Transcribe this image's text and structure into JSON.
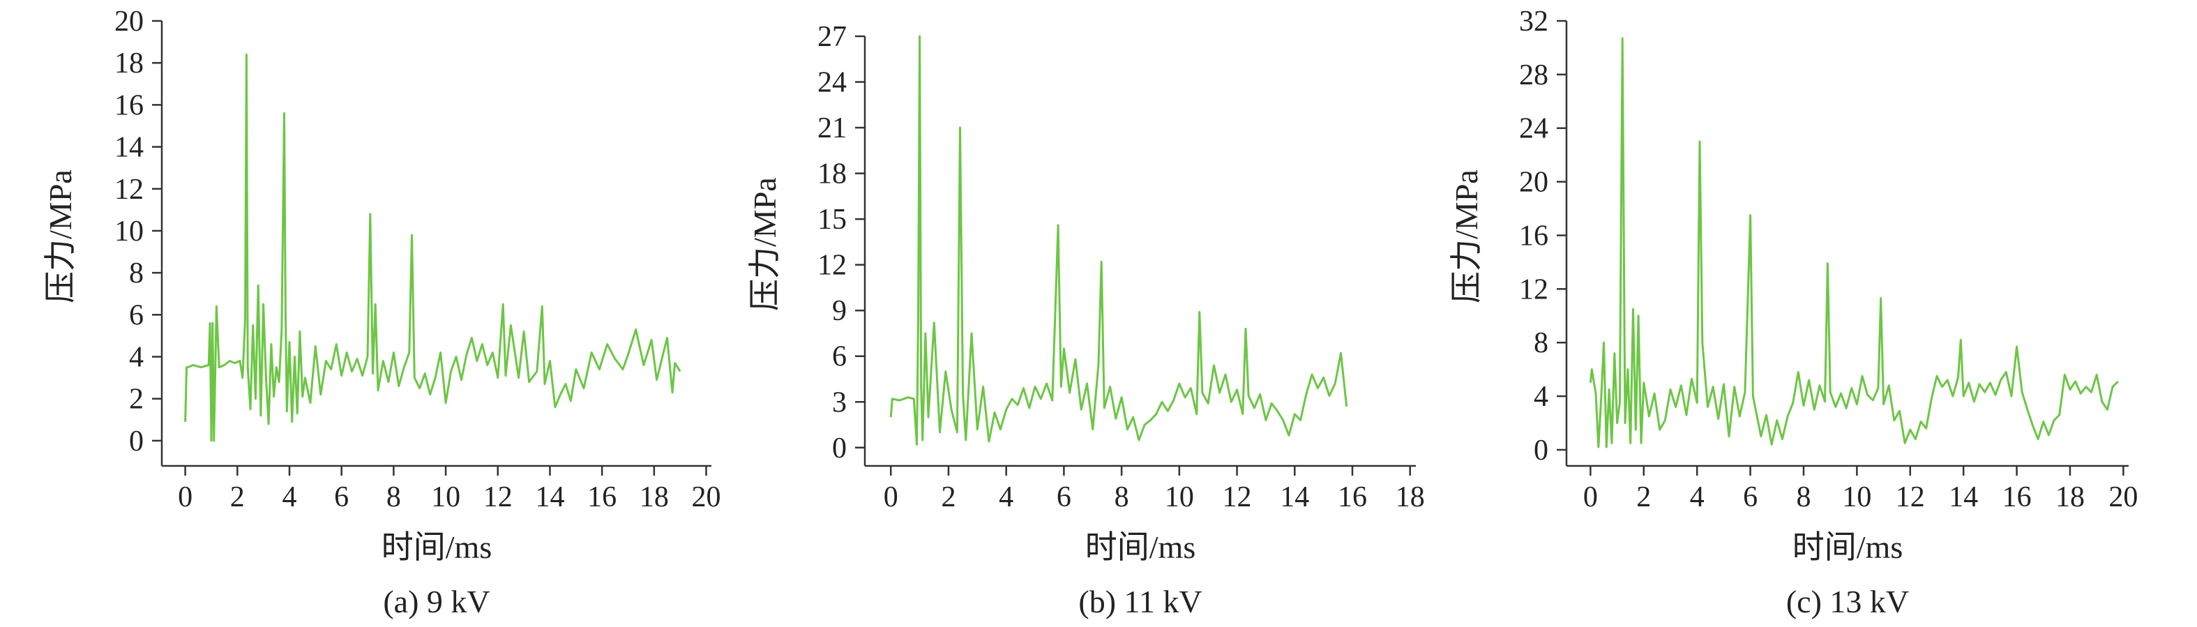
{
  "chart_data": [
    {
      "type": "line",
      "caption": "(a) 9 kV",
      "xlabel": "时间/ms",
      "ylabel": "压力/MPa",
      "xlim": [
        -0.9,
        20.2
      ],
      "ylim": [
        -1.2,
        20
      ],
      "xticks": [
        0,
        2,
        4,
        6,
        8,
        10,
        12,
        14,
        16,
        18,
        20
      ],
      "yticks": [
        0,
        2,
        4,
        6,
        8,
        10,
        12,
        14,
        16,
        18,
        20
      ],
      "color": "#6cc644",
      "grid": false,
      "legend": "none",
      "series": [
        {
          "x": [
            0,
            0.05,
            0.1,
            0.3,
            0.6,
            0.9,
            0.95,
            1.0,
            1.05,
            1.1,
            1.2,
            1.3,
            1.5,
            1.7,
            1.9,
            2.1,
            2.2,
            2.3,
            2.35,
            2.4,
            2.5,
            2.6,
            2.7,
            2.8,
            2.9,
            3.0,
            3.1,
            3.2,
            3.3,
            3.4,
            3.5,
            3.6,
            3.7,
            3.8,
            3.85,
            3.9,
            4.0,
            4.1,
            4.2,
            4.3,
            4.4,
            4.5,
            4.6,
            4.8,
            5.0,
            5.2,
            5.4,
            5.6,
            5.8,
            6.0,
            6.2,
            6.4,
            6.6,
            6.8,
            7.0,
            7.1,
            7.2,
            7.3,
            7.4,
            7.6,
            7.8,
            8.0,
            8.2,
            8.4,
            8.6,
            8.7,
            8.8,
            9.0,
            9.2,
            9.4,
            9.6,
            9.8,
            10.0,
            10.2,
            10.4,
            10.6,
            10.8,
            11.0,
            11.2,
            11.4,
            11.6,
            11.8,
            12.0,
            12.2,
            12.3,
            12.5,
            12.8,
            13.0,
            13.2,
            13.5,
            13.7,
            13.8,
            14.0,
            14.2,
            14.4,
            14.6,
            14.8,
            15.0,
            15.3,
            15.6,
            15.9,
            16.2,
            16.5,
            16.8,
            17.0,
            17.3,
            17.6,
            17.9,
            18.1,
            18.3,
            18.5,
            18.7,
            18.8,
            19.0
          ],
          "y": [
            0.9,
            3.5,
            3.5,
            3.6,
            3.5,
            3.6,
            5.6,
            0,
            5.6,
            0,
            6.4,
            3.5,
            3.6,
            3.8,
            3.7,
            3.8,
            3.0,
            5.8,
            18.4,
            3.5,
            1.5,
            5.5,
            2.0,
            7.4,
            1.2,
            6.5,
            3.0,
            0.8,
            4.6,
            2.1,
            3.5,
            2.8,
            5.2,
            15.6,
            6.0,
            1.4,
            4.7,
            0.9,
            4.0,
            1.3,
            5.2,
            2.1,
            3.0,
            1.8,
            4.5,
            2.2,
            3.8,
            3.4,
            4.6,
            3.1,
            4.2,
            3.3,
            3.9,
            3.1,
            4.0,
            10.8,
            3.2,
            6.5,
            2.4,
            3.8,
            2.8,
            4.2,
            2.6,
            3.5,
            4.2,
            9.8,
            3.0,
            2.5,
            3.2,
            2.2,
            3.0,
            4.2,
            1.8,
            3.3,
            4.0,
            2.9,
            4.1,
            4.9,
            3.8,
            4.6,
            3.6,
            4.2,
            3.0,
            6.5,
            3.1,
            5.5,
            3.0,
            5.2,
            2.8,
            3.3,
            6.4,
            2.7,
            3.8,
            1.6,
            2.2,
            2.7,
            1.9,
            3.4,
            2.5,
            4.2,
            3.4,
            4.6,
            3.9,
            3.4,
            4.1,
            5.3,
            3.6,
            4.8,
            2.9,
            3.9,
            4.9,
            2.3,
            3.7,
            3.3
          ]
        }
      ]
    },
    {
      "type": "line",
      "caption": "(b) 11 kV",
      "xlabel": "时间/ms",
      "ylabel": "压力/MPa",
      "xlim": [
        -0.9,
        18.2
      ],
      "ylim": [
        -1.2,
        27
      ],
      "xticks": [
        0,
        2,
        4,
        6,
        8,
        10,
        12,
        14,
        16,
        18
      ],
      "yticks": [
        0,
        3,
        6,
        9,
        12,
        15,
        18,
        21,
        24,
        27
      ],
      "color": "#6cc644",
      "grid": false,
      "legend": "none",
      "series": [
        {
          "x": [
            0,
            0.05,
            0.3,
            0.6,
            0.8,
            0.9,
            0.95,
            1.0,
            1.05,
            1.1,
            1.2,
            1.3,
            1.5,
            1.7,
            1.9,
            2.1,
            2.3,
            2.4,
            2.5,
            2.6,
            2.8,
            3.0,
            3.2,
            3.4,
            3.6,
            3.8,
            4.0,
            4.2,
            4.4,
            4.6,
            4.8,
            5.0,
            5.2,
            5.4,
            5.6,
            5.8,
            5.9,
            6.0,
            6.2,
            6.4,
            6.6,
            6.8,
            7.0,
            7.2,
            7.3,
            7.4,
            7.6,
            7.8,
            8.0,
            8.2,
            8.4,
            8.6,
            8.8,
            9.0,
            9.2,
            9.4,
            9.6,
            9.8,
            10.0,
            10.2,
            10.4,
            10.6,
            10.7,
            10.8,
            11.0,
            11.2,
            11.4,
            11.6,
            11.8,
            12.0,
            12.2,
            12.3,
            12.4,
            12.6,
            12.8,
            13.0,
            13.2,
            13.4,
            13.6,
            13.8,
            14.0,
            14.2,
            14.4,
            14.6,
            14.8,
            15.0,
            15.2,
            15.4,
            15.6,
            15.8
          ],
          "y": [
            2.0,
            3.2,
            3.1,
            3.3,
            3.2,
            0.2,
            8.5,
            27.0,
            4.0,
            0.5,
            7.5,
            2.0,
            8.2,
            1.0,
            5.0,
            2.5,
            1.0,
            21.0,
            3.5,
            0.5,
            7.5,
            1.2,
            4.0,
            0.4,
            2.3,
            1.2,
            2.5,
            3.2,
            2.8,
            3.9,
            2.6,
            4.0,
            3.2,
            4.2,
            3.1,
            14.6,
            4.0,
            6.5,
            3.6,
            5.8,
            2.5,
            4.2,
            1.2,
            5.5,
            12.2,
            2.6,
            4.0,
            1.9,
            3.3,
            1.2,
            2.0,
            0.5,
            1.5,
            1.8,
            2.2,
            3.0,
            2.4,
            3.1,
            4.2,
            3.3,
            3.9,
            2.2,
            8.9,
            3.6,
            2.9,
            5.4,
            3.6,
            4.8,
            3.0,
            3.8,
            2.2,
            7.8,
            3.4,
            2.6,
            3.5,
            1.8,
            2.9,
            2.4,
            1.8,
            0.8,
            2.2,
            1.8,
            3.5,
            4.8,
            3.9,
            4.6,
            3.4,
            4.2,
            6.2,
            2.7
          ]
        }
      ]
    },
    {
      "type": "line",
      "caption": "(c) 13 kV",
      "xlabel": "时间/ms",
      "ylabel": "压力/MPa",
      "xlim": [
        -0.9,
        20.2
      ],
      "ylim": [
        -1.2,
        32
      ],
      "xticks": [
        0,
        2,
        4,
        6,
        8,
        10,
        12,
        14,
        16,
        18,
        20
      ],
      "yticks": [
        0,
        4,
        8,
        12,
        16,
        20,
        24,
        28,
        32
      ],
      "color": "#6cc644",
      "grid": false,
      "legend": "none",
      "series": [
        {
          "x": [
            0,
            0.05,
            0.2,
            0.3,
            0.4,
            0.5,
            0.6,
            0.7,
            0.8,
            0.9,
            1.0,
            1.1,
            1.2,
            1.3,
            1.4,
            1.5,
            1.6,
            1.7,
            1.8,
            1.9,
            2.0,
            2.2,
            2.4,
            2.6,
            2.8,
            3.0,
            3.2,
            3.4,
            3.6,
            3.8,
            4.0,
            4.1,
            4.2,
            4.4,
            4.6,
            4.8,
            5.0,
            5.2,
            5.4,
            5.6,
            5.8,
            6.0,
            6.1,
            6.2,
            6.4,
            6.6,
            6.8,
            7.0,
            7.2,
            7.4,
            7.6,
            7.8,
            8.0,
            8.2,
            8.4,
            8.6,
            8.8,
            8.9,
            9.0,
            9.2,
            9.4,
            9.6,
            9.8,
            10.0,
            10.2,
            10.4,
            10.6,
            10.8,
            10.9,
            11.0,
            11.2,
            11.4,
            11.6,
            11.8,
            12.0,
            12.2,
            12.4,
            12.6,
            12.8,
            13.0,
            13.2,
            13.4,
            13.6,
            13.8,
            13.9,
            14.0,
            14.2,
            14.4,
            14.6,
            14.8,
            15.0,
            15.2,
            15.4,
            15.6,
            15.8,
            16.0,
            16.2,
            16.4,
            16.6,
            16.8,
            17.0,
            17.2,
            17.4,
            17.6,
            17.8,
            18.0,
            18.2,
            18.4,
            18.6,
            18.8,
            19.0,
            19.2,
            19.4,
            19.6,
            19.8
          ],
          "y": [
            5.0,
            6.0,
            4.2,
            0.2,
            3.8,
            8.0,
            0.2,
            4.5,
            0.5,
            7.2,
            2.0,
            3.5,
            30.7,
            2.0,
            6.0,
            0.5,
            10.5,
            1.5,
            10.0,
            0.5,
            5.0,
            2.5,
            4.2,
            1.5,
            2.2,
            4.5,
            3.2,
            4.8,
            2.6,
            5.3,
            3.5,
            23.0,
            8.0,
            3.2,
            4.7,
            2.3,
            4.9,
            1.0,
            4.7,
            2.5,
            4.3,
            17.5,
            4.0,
            3.0,
            1.0,
            2.6,
            0.4,
            2.2,
            0.8,
            2.5,
            3.5,
            5.8,
            3.3,
            5.2,
            3.0,
            4.8,
            3.6,
            13.9,
            4.3,
            3.2,
            4.2,
            3.1,
            4.6,
            3.4,
            5.5,
            4.1,
            3.7,
            4.6,
            11.3,
            3.4,
            4.8,
            2.2,
            2.9,
            0.5,
            1.5,
            0.8,
            2.1,
            1.6,
            3.8,
            5.5,
            4.7,
            5.2,
            4.0,
            5.4,
            8.2,
            4.0,
            5.0,
            3.6,
            4.9,
            4.3,
            5.0,
            4.1,
            5.2,
            5.8,
            4.0,
            7.7,
            4.3,
            3.0,
            1.8,
            0.8,
            2.1,
            1.1,
            2.2,
            2.6,
            5.6,
            4.5,
            5.1,
            4.2,
            4.7,
            4.3,
            5.6,
            3.6,
            3.0,
            4.7,
            5.1
          ]
        }
      ]
    }
  ]
}
